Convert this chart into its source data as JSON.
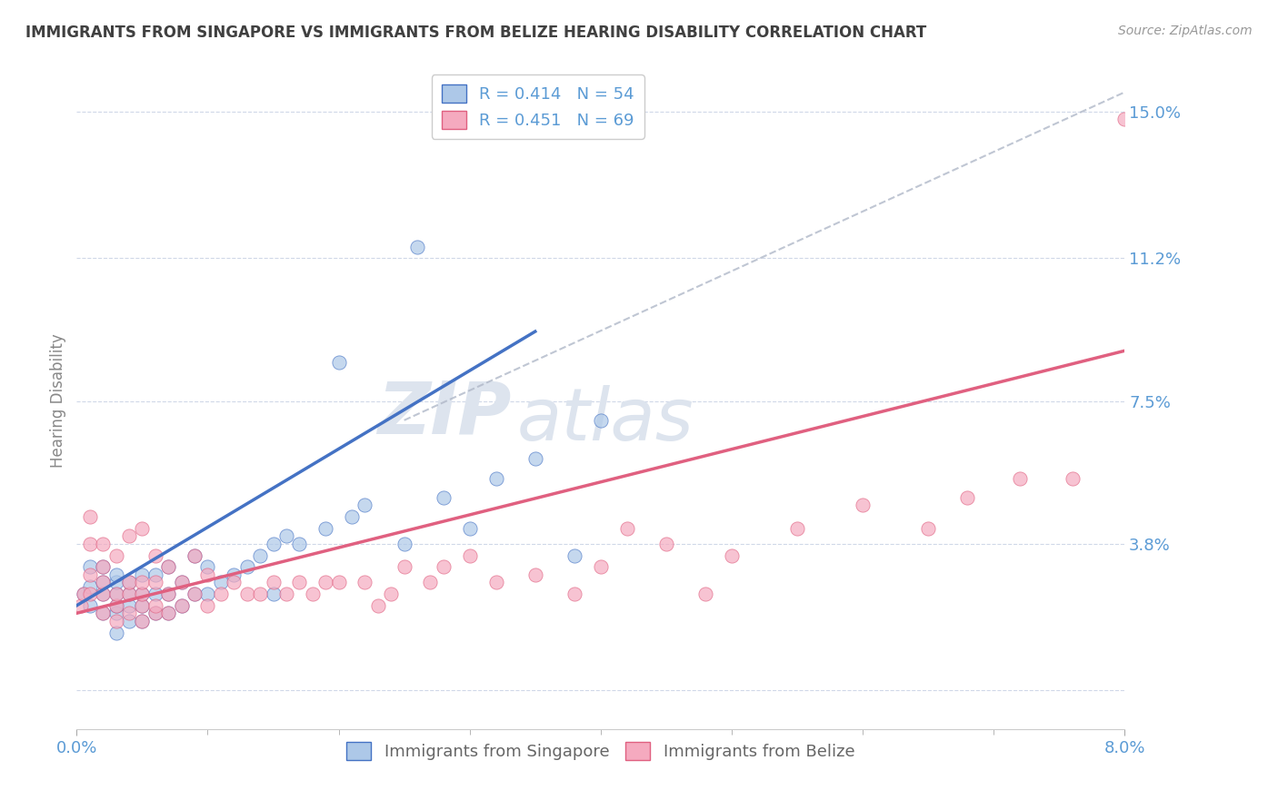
{
  "title": "IMMIGRANTS FROM SINGAPORE VS IMMIGRANTS FROM BELIZE HEARING DISABILITY CORRELATION CHART",
  "source": "Source: ZipAtlas.com",
  "ylabel": "Hearing Disability",
  "xlim": [
    0.0,
    0.08
  ],
  "ylim": [
    -0.01,
    0.16
  ],
  "xtick_positions": [
    0.0,
    0.08
  ],
  "xtick_labels": [
    "0.0%",
    "8.0%"
  ],
  "xtick_minor": [
    0.01,
    0.02,
    0.03,
    0.04,
    0.05,
    0.06,
    0.07
  ],
  "yticks": [
    0.0,
    0.038,
    0.075,
    0.112,
    0.15
  ],
  "ytick_labels": [
    "",
    "3.8%",
    "7.5%",
    "11.2%",
    "15.0%"
  ],
  "singapore_color": "#adc8e8",
  "belize_color": "#f5aabf",
  "singapore_line_color": "#4472c4",
  "belize_line_color": "#e06080",
  "legend_singapore_label": "R = 0.414   N = 54",
  "legend_belize_label": "R = 0.451   N = 69",
  "watermark_zip": "ZIP",
  "watermark_atlas": "atlas",
  "background_color": "#ffffff",
  "title_color": "#404040",
  "axis_label_color": "#5b9bd5",
  "grid_color": "#d0d8e8",
  "singapore_line": {
    "x0": 0.0,
    "y0": 0.022,
    "x1": 0.035,
    "y1": 0.093
  },
  "belize_line": {
    "x0": 0.0,
    "y0": 0.02,
    "x1": 0.08,
    "y1": 0.088
  },
  "gray_dashed_line": {
    "x0": 0.025,
    "y0": 0.07,
    "x1": 0.08,
    "y1": 0.155
  },
  "singapore_scatter_x": [
    0.0005,
    0.001,
    0.001,
    0.001,
    0.002,
    0.002,
    0.002,
    0.002,
    0.003,
    0.003,
    0.003,
    0.003,
    0.003,
    0.003,
    0.004,
    0.004,
    0.004,
    0.004,
    0.005,
    0.005,
    0.005,
    0.005,
    0.006,
    0.006,
    0.006,
    0.007,
    0.007,
    0.007,
    0.008,
    0.008,
    0.009,
    0.009,
    0.01,
    0.01,
    0.011,
    0.012,
    0.013,
    0.014,
    0.015,
    0.015,
    0.016,
    0.017,
    0.019,
    0.02,
    0.021,
    0.022,
    0.025,
    0.026,
    0.028,
    0.03,
    0.032,
    0.035,
    0.038,
    0.04
  ],
  "singapore_scatter_y": [
    0.025,
    0.022,
    0.027,
    0.032,
    0.02,
    0.025,
    0.028,
    0.032,
    0.015,
    0.02,
    0.022,
    0.025,
    0.028,
    0.03,
    0.018,
    0.022,
    0.025,
    0.028,
    0.018,
    0.022,
    0.025,
    0.03,
    0.02,
    0.025,
    0.03,
    0.02,
    0.025,
    0.032,
    0.022,
    0.028,
    0.025,
    0.035,
    0.025,
    0.032,
    0.028,
    0.03,
    0.032,
    0.035,
    0.025,
    0.038,
    0.04,
    0.038,
    0.042,
    0.085,
    0.045,
    0.048,
    0.038,
    0.115,
    0.05,
    0.042,
    0.055,
    0.06,
    0.035,
    0.07
  ],
  "belize_scatter_x": [
    0.0003,
    0.0005,
    0.001,
    0.001,
    0.001,
    0.001,
    0.002,
    0.002,
    0.002,
    0.002,
    0.002,
    0.003,
    0.003,
    0.003,
    0.003,
    0.004,
    0.004,
    0.004,
    0.004,
    0.005,
    0.005,
    0.005,
    0.005,
    0.005,
    0.006,
    0.006,
    0.006,
    0.006,
    0.007,
    0.007,
    0.007,
    0.008,
    0.008,
    0.009,
    0.009,
    0.01,
    0.01,
    0.011,
    0.012,
    0.013,
    0.014,
    0.015,
    0.016,
    0.017,
    0.018,
    0.019,
    0.02,
    0.022,
    0.023,
    0.024,
    0.025,
    0.027,
    0.028,
    0.03,
    0.032,
    0.035,
    0.038,
    0.04,
    0.042,
    0.045,
    0.048,
    0.05,
    0.055,
    0.06,
    0.065,
    0.068,
    0.072,
    0.076,
    0.08
  ],
  "belize_scatter_y": [
    0.022,
    0.025,
    0.025,
    0.03,
    0.038,
    0.045,
    0.02,
    0.025,
    0.028,
    0.032,
    0.038,
    0.018,
    0.022,
    0.025,
    0.035,
    0.02,
    0.025,
    0.028,
    0.04,
    0.018,
    0.022,
    0.025,
    0.028,
    0.042,
    0.02,
    0.022,
    0.028,
    0.035,
    0.02,
    0.025,
    0.032,
    0.022,
    0.028,
    0.025,
    0.035,
    0.022,
    0.03,
    0.025,
    0.028,
    0.025,
    0.025,
    0.028,
    0.025,
    0.028,
    0.025,
    0.028,
    0.028,
    0.028,
    0.022,
    0.025,
    0.032,
    0.028,
    0.032,
    0.035,
    0.028,
    0.03,
    0.025,
    0.032,
    0.042,
    0.038,
    0.025,
    0.035,
    0.042,
    0.048,
    0.042,
    0.05,
    0.055,
    0.055,
    0.148
  ]
}
